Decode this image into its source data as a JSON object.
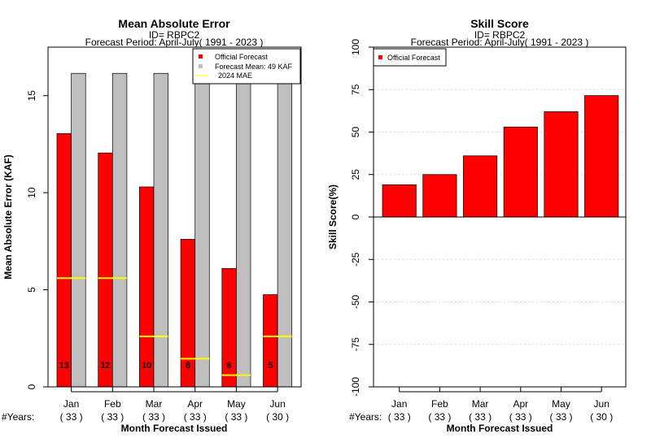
{
  "chart_data": [
    {
      "type": "bar",
      "title": "Mean Absolute Error",
      "subtitle1": "ID= RBPC2",
      "subtitle2": "Forecast Period: April-July( 1991 - 2023 )",
      "xlabel": "Month Forecast Issued",
      "ylabel": "Mean Absolute Error (KAF)",
      "ylim": [
        0,
        17.5
      ],
      "yticks": [
        "0",
        "5",
        "10",
        "15"
      ],
      "categories": [
        "Jan",
        "Feb",
        "Mar",
        "Apr",
        "May",
        "Jun"
      ],
      "years_label": "#Years:",
      "years": [
        "( 33 )",
        "( 33 )",
        "( 33 )",
        "( 33 )",
        "( 33 )",
        "( 30 )"
      ],
      "series": [
        {
          "name": "Official Forecast",
          "color": "#ff0000",
          "values": [
            13.05,
            12.05,
            10.3,
            7.6,
            6.1,
            4.75
          ],
          "labels": [
            "13",
            "12",
            "10",
            "8",
            "6",
            "5"
          ]
        },
        {
          "name": "Forecast Mean: 49 KAF",
          "color": "#bebebe",
          "values": [
            16.15,
            16.15,
            16.15,
            16.15,
            16.15,
            16.55
          ]
        },
        {
          "name": "2024  MAE",
          "color": "#ffff00",
          "values": [
            5.6,
            5.6,
            2.6,
            1.45,
            0.6,
            2.6
          ]
        }
      ],
      "legend_position": "top-right",
      "grid": false
    },
    {
      "type": "bar",
      "title": "Skill Score",
      "subtitle1": "ID= RBPC2",
      "subtitle2": "Forecast Period: April-July( 1991 - 2023 )",
      "xlabel": "Month Forecast Issued",
      "ylabel": "Skill Score(%)",
      "ylim": [
        -100,
        100
      ],
      "yticks": [
        "-100",
        "-75",
        "-50",
        "-25",
        "0",
        "25",
        "50",
        "75",
        "100"
      ],
      "categories": [
        "Jan",
        "Feb",
        "Mar",
        "Apr",
        "May",
        "Jun"
      ],
      "years_label": "#Years:",
      "years": [
        "( 33 )",
        "( 33 )",
        "( 33 )",
        "( 33 )",
        "( 33 )",
        "( 30 )"
      ],
      "series": [
        {
          "name": "Official Forecast",
          "color": "#ff0000",
          "values": [
            19,
            25,
            36,
            53,
            62,
            71.5
          ]
        }
      ],
      "legend_position": "top-left",
      "grid": true
    }
  ]
}
